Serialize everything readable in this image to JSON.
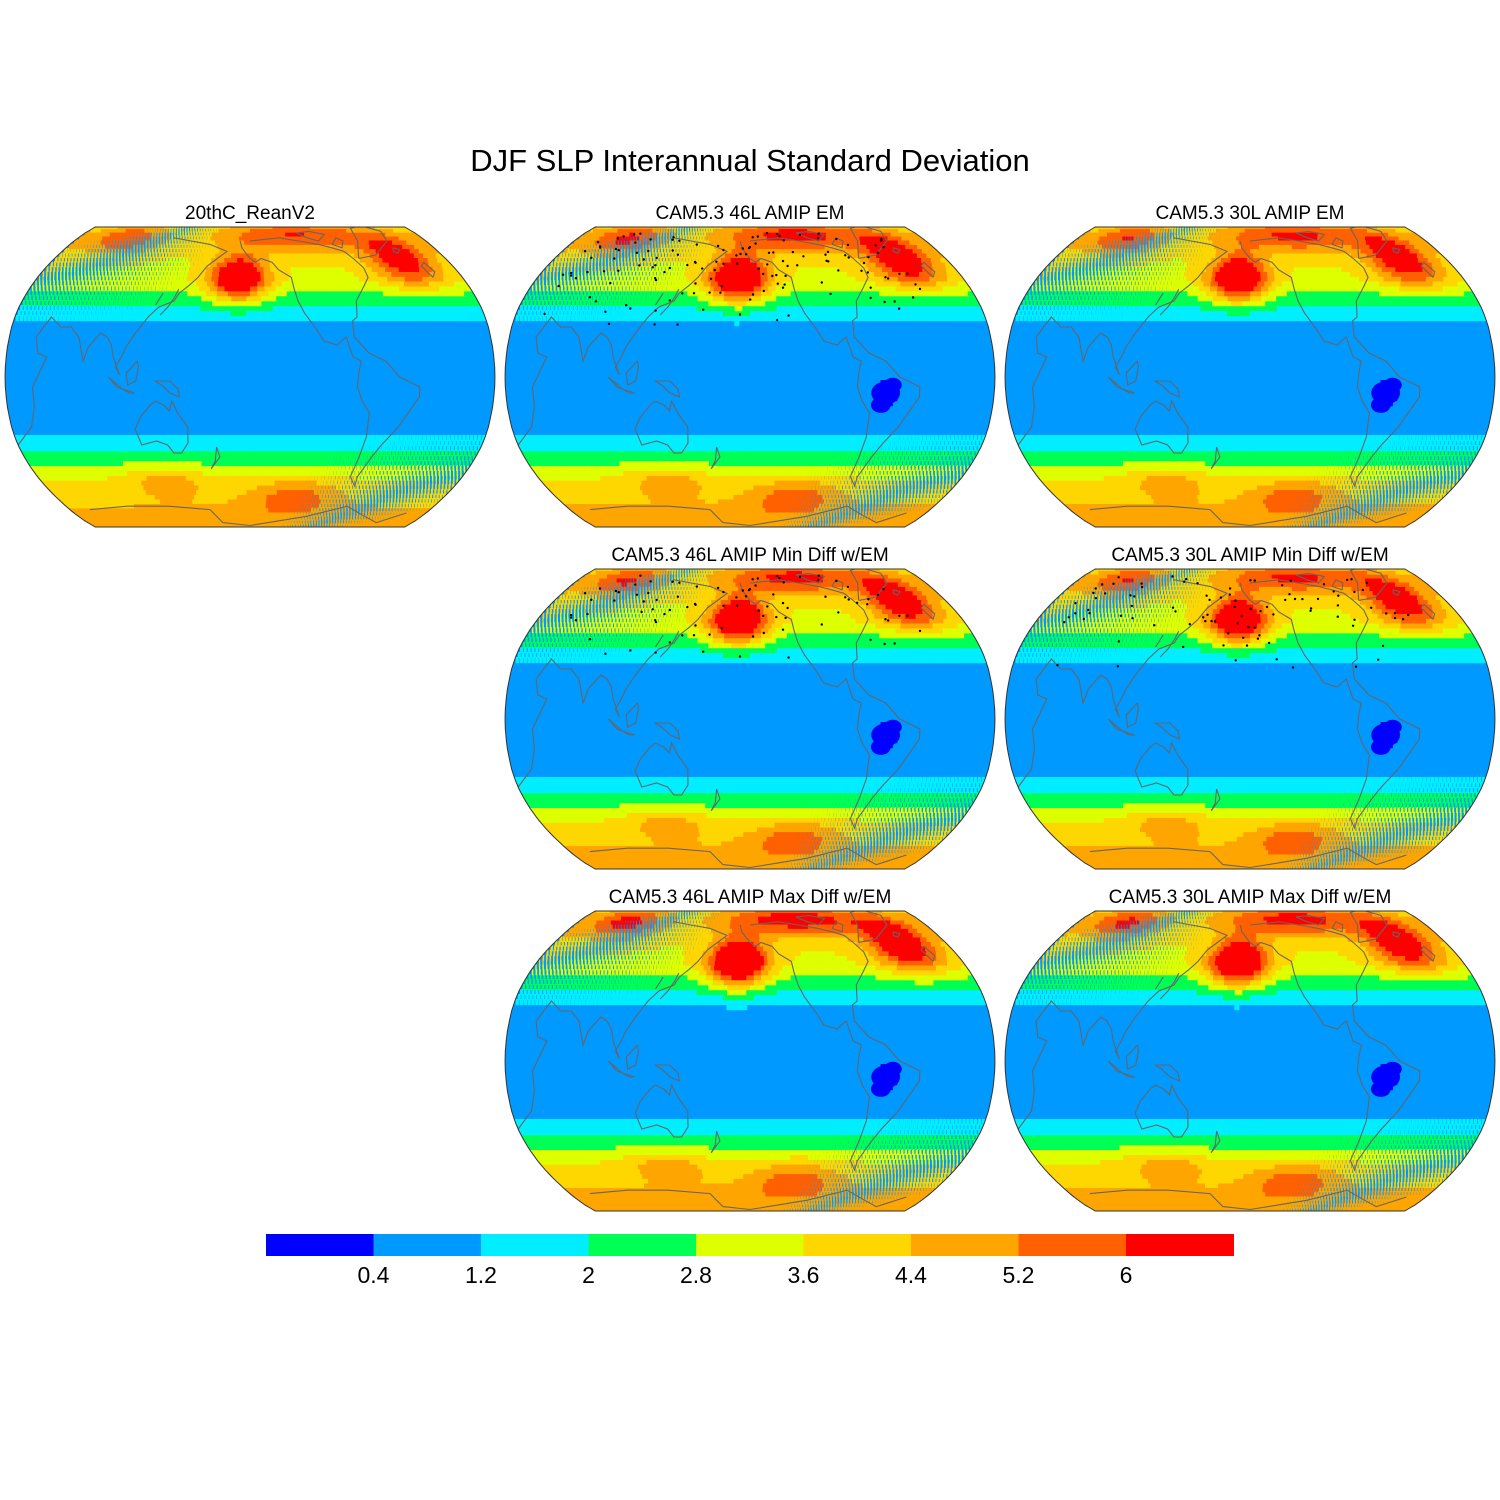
{
  "figure": {
    "title": "DJF SLP Interannual Standard Deviation"
  },
  "chart_data": {
    "type": "heatmap",
    "title": "DJF SLP Interannual Standard Deviation",
    "projection": "robinson",
    "panels": [
      {
        "id": "reanalysis",
        "title": "20thC_ReanV2",
        "row": 0,
        "col": 0,
        "scale": 1.0,
        "stipple": 0,
        "blue": 0
      },
      {
        "id": "l46_em",
        "title": "CAM5.3 46L AMIP EM",
        "row": 0,
        "col": 1,
        "scale": 1.1,
        "stipple": 3,
        "blue": 1
      },
      {
        "id": "l30_em",
        "title": "CAM5.3 30L AMIP EM",
        "row": 0,
        "col": 2,
        "scale": 1.05,
        "stipple": 0,
        "blue": 1
      },
      {
        "id": "l46_min",
        "title": "CAM5.3 46L AMIP Min Diff w/EM",
        "row": 1,
        "col": 1,
        "scale": 1.08,
        "stipple": 2,
        "blue": 1
      },
      {
        "id": "l30_min",
        "title": "CAM5.3 30L AMIP Min Diff w/EM",
        "row": 1,
        "col": 2,
        "scale": 1.05,
        "stipple": 2,
        "blue": 1
      },
      {
        "id": "l46_max",
        "title": "CAM5.3 46L AMIP Max Diff w/EM",
        "row": 2,
        "col": 1,
        "scale": 1.15,
        "stipple": 0,
        "blue": 1
      },
      {
        "id": "l30_max",
        "title": "CAM5.3 30L AMIP Max Diff w/EM",
        "row": 2,
        "col": 2,
        "scale": 1.1,
        "stipple": 0,
        "blue": 1
      }
    ],
    "colorbar": {
      "levels": [
        0.4,
        1.2,
        2,
        2.8,
        3.6,
        4.4,
        5.2,
        6
      ],
      "labels": [
        "0.4",
        "1.2",
        "2",
        "2.8",
        "3.6",
        "4.4",
        "5.2",
        "6"
      ],
      "colors": [
        "#0000ff",
        "#0099ff",
        "#00eeff",
        "#00ff55",
        "#ddff00",
        "#ffd700",
        "#ffa500",
        "#ff6000",
        "#ff0000"
      ]
    },
    "coastline_color": "#666666"
  }
}
